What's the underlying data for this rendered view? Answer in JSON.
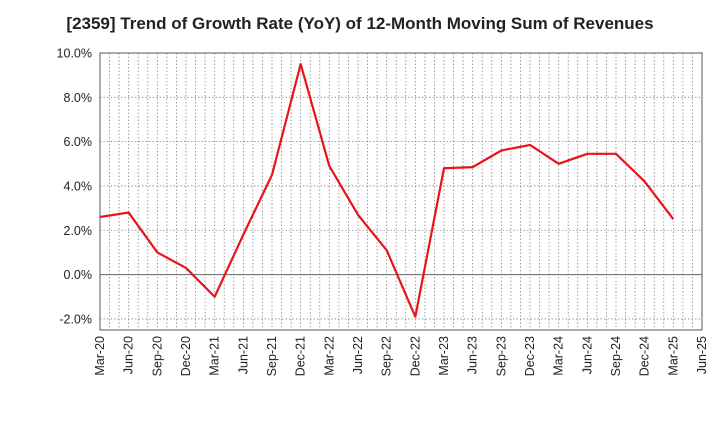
{
  "chart_data": {
    "type": "line",
    "title": "[2359]  Trend of Growth Rate (YoY) of 12-Month Moving Sum of Revenues",
    "xlabel": "",
    "ylabel": "",
    "x_tick_labels": [
      "Mar-20",
      "Jun-20",
      "Sep-20",
      "Dec-20",
      "Mar-21",
      "Jun-21",
      "Sep-21",
      "Dec-21",
      "Mar-22",
      "Jun-22",
      "Sep-22",
      "Dec-22",
      "Mar-23",
      "Jun-23",
      "Sep-23",
      "Dec-23",
      "Mar-24",
      "Jun-24",
      "Sep-24",
      "Dec-24",
      "Mar-25",
      "Jun-25"
    ],
    "y_tick_labels": [
      "10.0%",
      "8.0%",
      "6.0%",
      "4.0%",
      "2.0%",
      "0.0%",
      "-2.0%"
    ],
    "y_ticks": [
      10,
      8,
      6,
      4,
      2,
      0,
      -2
    ],
    "ylim": [
      -2.5,
      10
    ],
    "grid": true,
    "color": "#e8141a",
    "series": [
      {
        "name": "",
        "x": [
          "Mar-20",
          "Jun-20",
          "Sep-20",
          "Dec-20",
          "Mar-21",
          "Jun-21",
          "Sep-21",
          "Dec-21",
          "Mar-22",
          "Jun-22",
          "Sep-22",
          "Dec-22",
          "Mar-23",
          "Jun-23",
          "Sep-23",
          "Dec-23",
          "Mar-24",
          "Jun-24",
          "Sep-24",
          "Dec-24",
          "Mar-25"
        ],
        "values": [
          2.6,
          2.8,
          1.0,
          0.3,
          -1.0,
          1.8,
          4.5,
          9.5,
          4.9,
          2.7,
          1.1,
          -1.9,
          4.8,
          4.85,
          5.6,
          5.85,
          5.0,
          5.45,
          5.45,
          4.2,
          2.5
        ]
      }
    ]
  }
}
